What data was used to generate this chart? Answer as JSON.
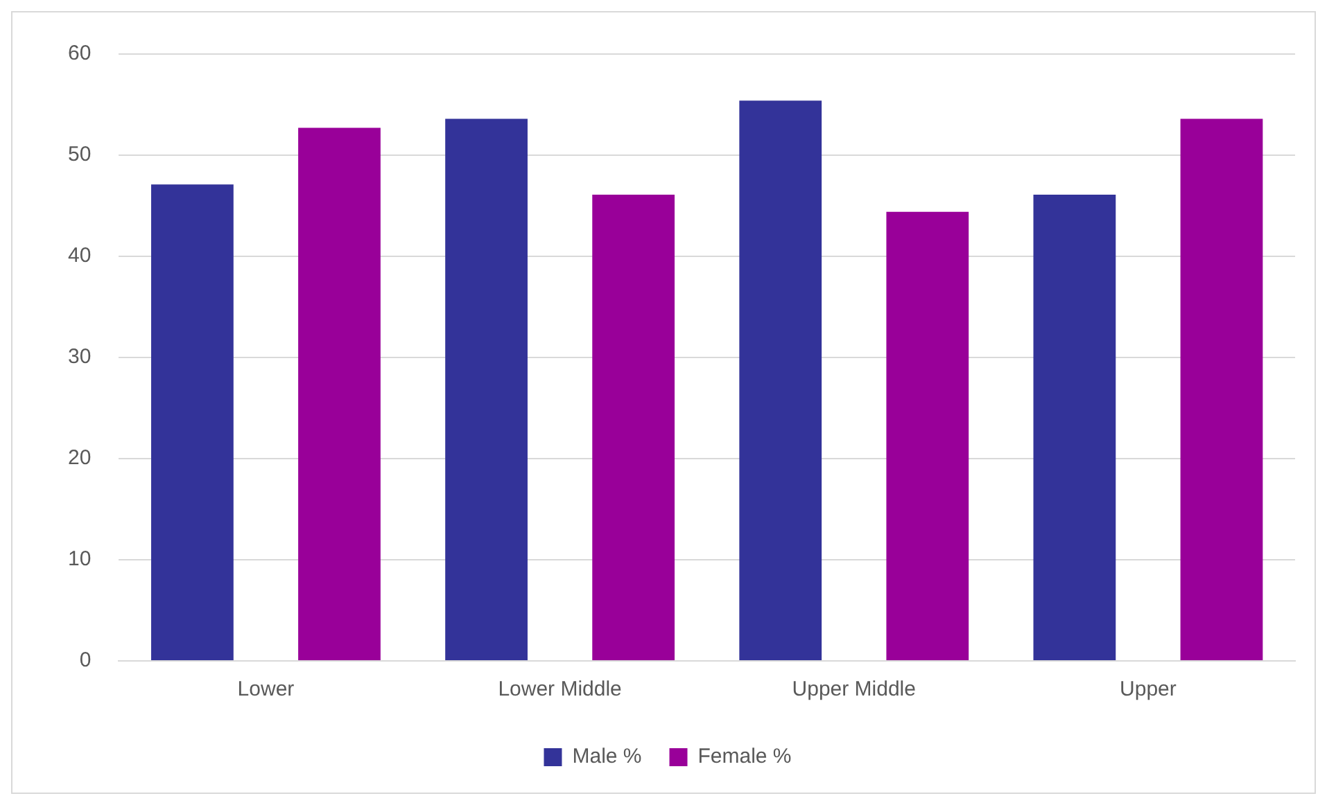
{
  "chart_data": {
    "type": "bar",
    "categories": [
      "Lower",
      "Lower Middle",
      "Upper Middle",
      "Upper"
    ],
    "series": [
      {
        "name": "Male %",
        "color": "#333399",
        "values": [
          47.1,
          53.6,
          55.4,
          46.1
        ]
      },
      {
        "name": "Female %",
        "color": "#990099",
        "values": [
          52.7,
          46.1,
          44.4,
          53.6
        ]
      }
    ],
    "ylim": [
      0,
      60
    ],
    "yticks": [
      0,
      10,
      20,
      30,
      40,
      50,
      60
    ],
    "grid": "y",
    "legend": "bottom"
  }
}
